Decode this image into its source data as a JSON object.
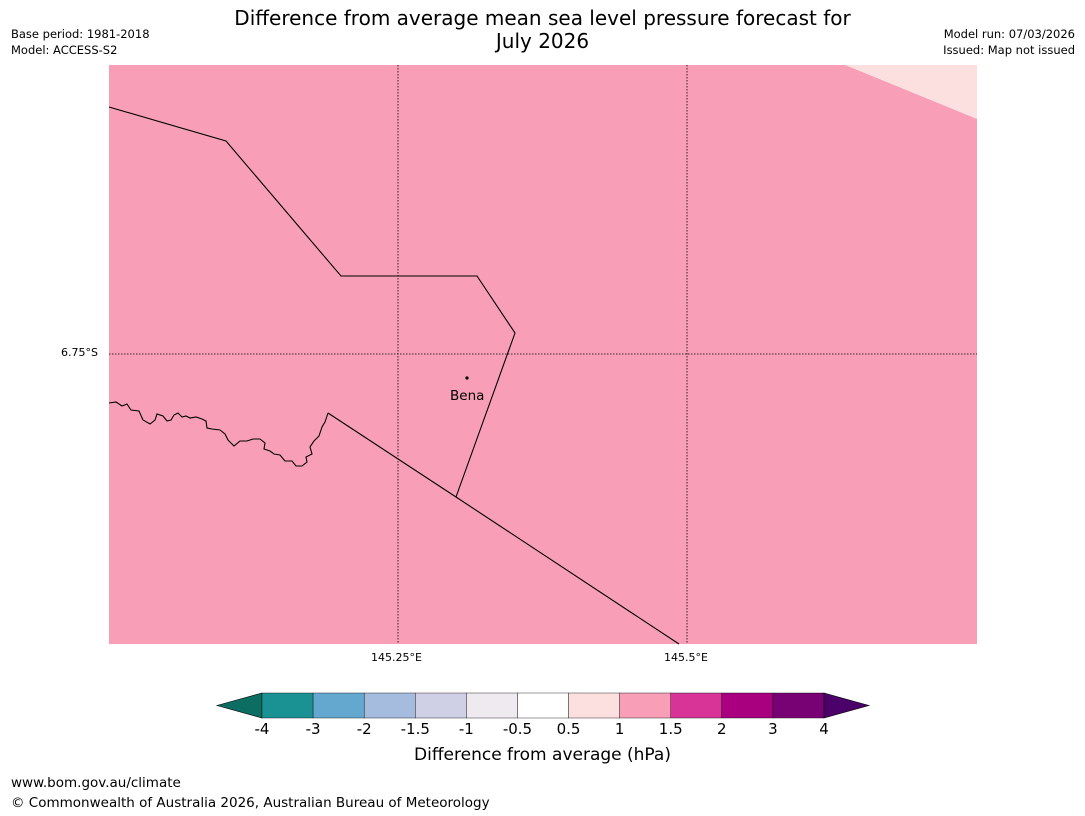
{
  "title": {
    "line1": "Difference from average mean sea level pressure forecast for",
    "line2": "July 2026"
  },
  "meta": {
    "base_period": "Base period: 1981-2018",
    "model": "Model: ACCESS-S2",
    "model_run": "Model run: 07/03/2026",
    "issued": "Issued: Map not issued"
  },
  "map": {
    "latitude_label": "6.75°S",
    "longitude_labels": [
      "145.25°E",
      "145.5°E"
    ],
    "place": "Bena",
    "fill_bin": "1 to 1.5 hPa",
    "fill_color": "#f89fb7",
    "corner_bin": "0.5 to 1 hPa",
    "corner_color": "#fcdfdf"
  },
  "colorbar": {
    "label": "Difference from average (hPa)",
    "ticks": [
      "-4",
      "-3",
      "-2",
      "-1.5",
      "-1",
      "-0.5",
      "0.5",
      "1",
      "1.5",
      "2",
      "3",
      "4"
    ],
    "colors": [
      "#0c6d63",
      "#1a9193",
      "#64a8cf",
      "#a6bcde",
      "#cfcfe6",
      "#eeeaf0",
      "#ffffff",
      "#fcdfdf",
      "#f89fb7",
      "#d83498",
      "#a9007f",
      "#780174",
      "#4b006a"
    ]
  },
  "footer": {
    "url": "www.bom.gov.au/climate",
    "copyright": "© Commonwealth of Australia 2026, Australian Bureau of Meteorology"
  }
}
